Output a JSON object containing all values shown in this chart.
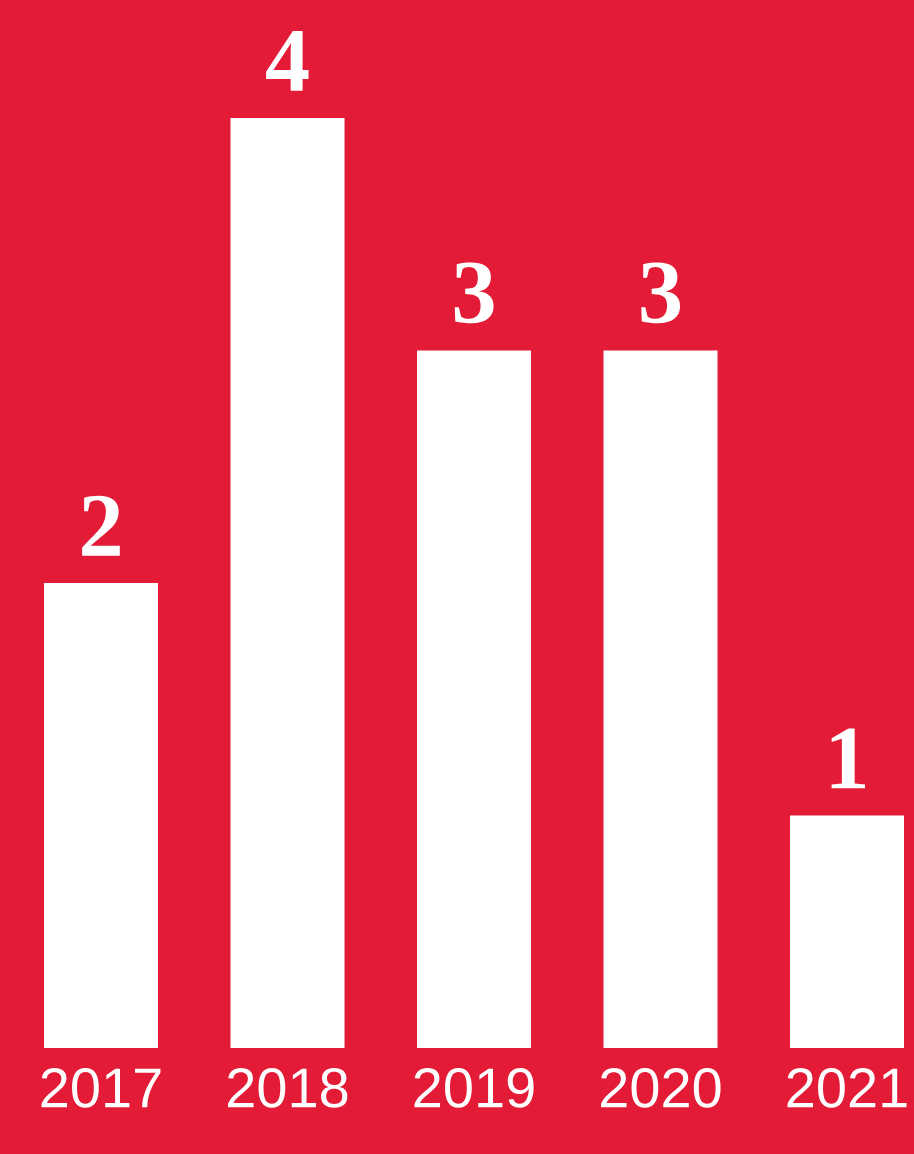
{
  "chart_data": {
    "type": "bar",
    "categories": [
      "2017",
      "2018",
      "2019",
      "2020",
      "2021"
    ],
    "values": [
      2,
      4,
      3,
      3,
      1
    ],
    "color": "#ffffff",
    "data_labels": true
  }
}
